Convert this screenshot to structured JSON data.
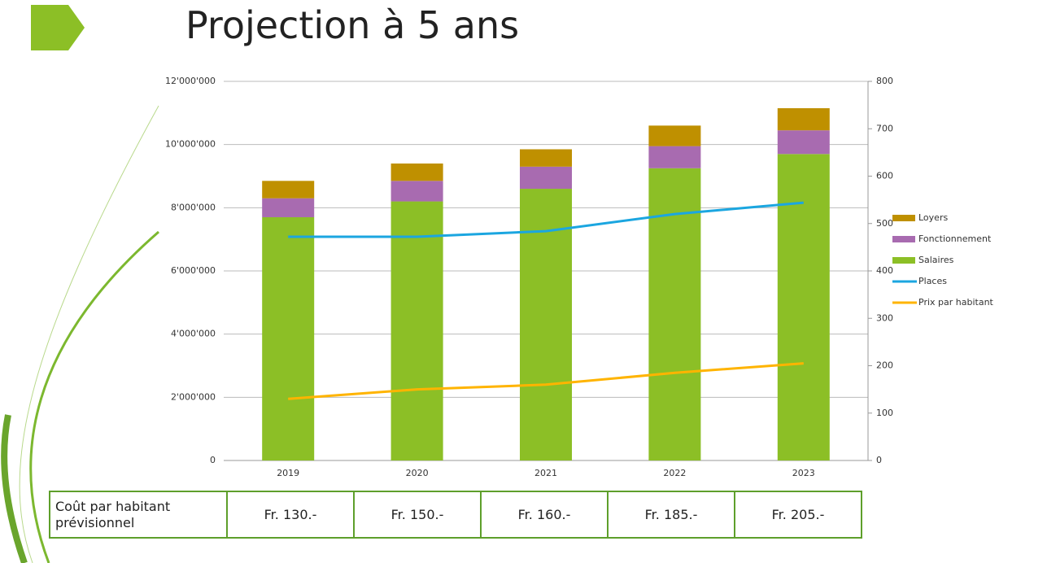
{
  "title": "Projection à 5 ans",
  "chart_data": {
    "type": "bar",
    "categories": [
      "2019",
      "2020",
      "2021",
      "2022",
      "2023"
    ],
    "series": [
      {
        "name": "Loyers",
        "type": "bar",
        "color": "#bf9000",
        "values": [
          550000,
          550000,
          550000,
          650000,
          700000
        ]
      },
      {
        "name": "Fonctionnement",
        "type": "bar",
        "color": "#a86bb0",
        "values": [
          600000,
          650000,
          700000,
          700000,
          750000
        ]
      },
      {
        "name": "Salaires",
        "type": "bar",
        "color": "#8cbf26",
        "values": [
          7700000,
          8200000,
          8600000,
          9250000,
          9700000
        ]
      },
      {
        "name": "Places",
        "type": "line",
        "axis": "y2",
        "color": "#1ba6e0",
        "values": [
          472,
          472,
          484,
          520,
          544
        ]
      },
      {
        "name": "Prix par habitant",
        "type": "line",
        "axis": "y2",
        "color": "#ffb400",
        "values": [
          130,
          150,
          160,
          185,
          205
        ]
      }
    ],
    "ylim": [
      0,
      12000000
    ],
    "yticks": [
      0,
      {
        "value": 2000000,
        "label": "2'000'000"
      },
      {
        "value": 4000000,
        "label": "4'000'000"
      },
      {
        "value": 6000000,
        "label": "6'000'000"
      },
      {
        "value": 8000000,
        "label": "8'000'000"
      },
      {
        "value": 10000000,
        "label": "10'000'000"
      },
      {
        "value": 12000000,
        "label": "12'000'000"
      }
    ],
    "y2lim": [
      0,
      800
    ],
    "y2ticks": [
      0,
      100,
      200,
      300,
      400,
      500,
      600,
      700,
      800
    ],
    "grid": true,
    "legend": "right"
  },
  "table": {
    "header": "Coût par habitant prévisionnel",
    "cells": [
      "Fr. 130.-",
      "Fr. 150.-",
      "Fr. 160.-",
      "Fr. 185.-",
      "Fr. 205.-"
    ]
  }
}
